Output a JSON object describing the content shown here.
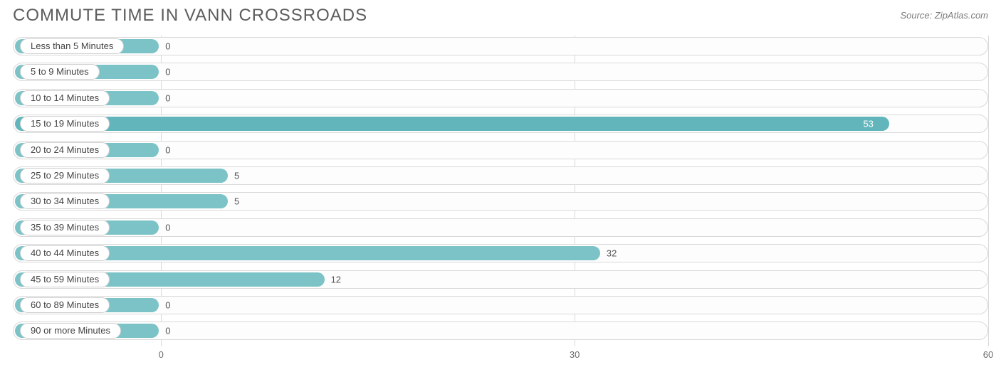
{
  "title": "COMMUTE TIME IN VANN CROSSROADS",
  "source": "Source: ZipAtlas.com",
  "chart": {
    "type": "bar-horizontal",
    "bar_color": "#7cc3c7",
    "bar_color_alt": "#62b6bb",
    "track_border": "#d9d9d9",
    "grid_color": "#d9d9d9",
    "pill_bg": "#ffffff",
    "pill_border": "#d0d0d0",
    "label_origin_pct": 15.2,
    "xmax": 60,
    "x_ticks": [
      0,
      30,
      60
    ],
    "rows": [
      {
        "label": "Less than 5 Minutes",
        "value": 0
      },
      {
        "label": "5 to 9 Minutes",
        "value": 0
      },
      {
        "label": "10 to 14 Minutes",
        "value": 0
      },
      {
        "label": "15 to 19 Minutes",
        "value": 53
      },
      {
        "label": "20 to 24 Minutes",
        "value": 0
      },
      {
        "label": "25 to 29 Minutes",
        "value": 5
      },
      {
        "label": "30 to 34 Minutes",
        "value": 5
      },
      {
        "label": "35 to 39 Minutes",
        "value": 0
      },
      {
        "label": "40 to 44 Minutes",
        "value": 32
      },
      {
        "label": "45 to 59 Minutes",
        "value": 12
      },
      {
        "label": "60 to 89 Minutes",
        "value": 0
      },
      {
        "label": "90 or more Minutes",
        "value": 0
      }
    ]
  }
}
